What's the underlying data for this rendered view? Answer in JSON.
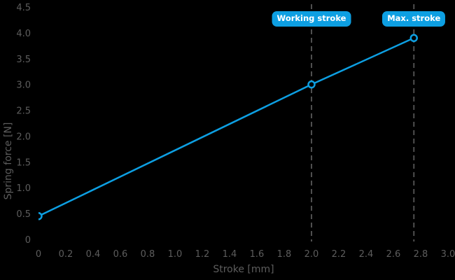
{
  "page": {
    "background": "#000000"
  },
  "colors": {
    "accent_blue": "#0d9fe2",
    "axis_text": "#5d5d5d",
    "dash_line": "#4f4f4f",
    "marker_fill": "#000000",
    "annotation_text": "#ffffff"
  },
  "chart_data": {
    "type": "line",
    "title": "",
    "xlabel": "Stroke [mm]",
    "ylabel": "Spring force [N]",
    "xlim": [
      0,
      3.0
    ],
    "ylim": [
      0,
      4.5
    ],
    "x_ticks": [
      "0",
      "0.2",
      "0.4",
      "0.6",
      "0.8",
      "1.0",
      "1.2",
      "1.4",
      "1.6",
      "1.8",
      "2.0",
      "2.2",
      "2.4",
      "2.6",
      "2.8",
      "3.0"
    ],
    "y_ticks": [
      "0",
      "0.5",
      "1.0",
      "1.5",
      "2.0",
      "2.5",
      "3.0",
      "3.5",
      "4.0",
      "4.5"
    ],
    "grid": false,
    "legend": "none",
    "series": [
      {
        "name": "spring-force-line",
        "color": "#0d9fe2",
        "marker": "circle",
        "points": [
          [
            0,
            0.45
          ],
          [
            2.0,
            3.0
          ],
          [
            2.75,
            3.9
          ]
        ]
      }
    ],
    "annotations": [
      {
        "label": "Working stroke",
        "x": 2.0,
        "style": "dashed-vertical-line-with-badge"
      },
      {
        "label": "Max. stroke",
        "x": 2.75,
        "style": "dashed-vertical-line-with-badge"
      }
    ]
  }
}
